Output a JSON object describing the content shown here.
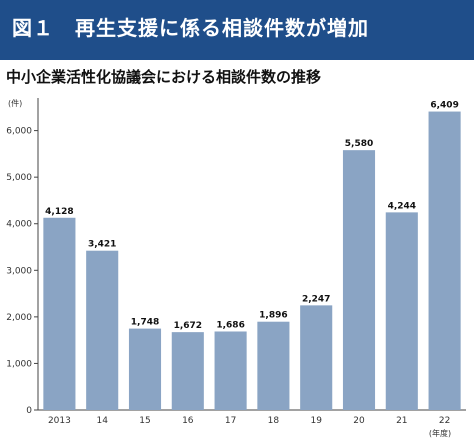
{
  "header": {
    "title": "図１　再生支援に係る相談件数が増加"
  },
  "chart_data": {
    "type": "bar",
    "title": "中小企業活性化協議会における相談件数の推移",
    "ylabel": "(件)",
    "xlabel": "(年度)",
    "categories": [
      "2013",
      "14",
      "15",
      "16",
      "17",
      "18",
      "19",
      "20",
      "21",
      "22"
    ],
    "values": [
      4128,
      3421,
      1748,
      1672,
      1686,
      1896,
      2247,
      5580,
      4244,
      6409
    ],
    "value_labels": [
      "4,128",
      "3,421",
      "1,748",
      "1,672",
      "1,686",
      "1,896",
      "2,247",
      "5,580",
      "4,244",
      "6,409"
    ],
    "yticks": [
      0,
      1000,
      2000,
      3000,
      4000,
      5000,
      6000
    ],
    "ytick_labels": [
      "0",
      "1,000",
      "2,000",
      "3,000",
      "4,000",
      "5,000",
      "6,000"
    ],
    "ylim": [
      0,
      6700
    ],
    "grid": false,
    "bar_color": "#8aa4c4"
  }
}
